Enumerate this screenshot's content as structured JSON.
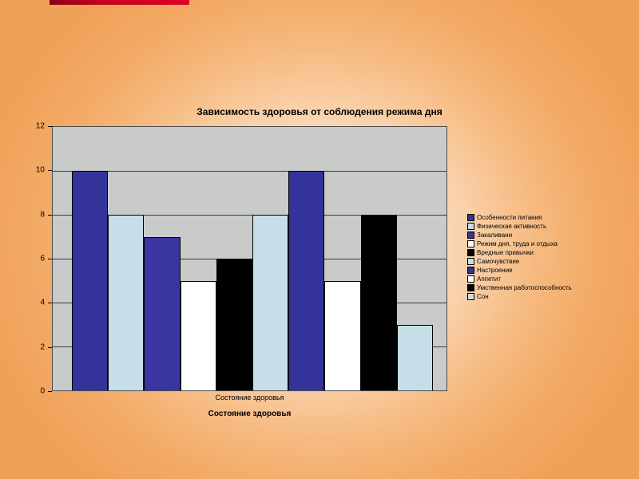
{
  "slide": {
    "accent_color": "#c2001c",
    "background_outer": "#f0a158",
    "background_center": "#fff8f5"
  },
  "chart_data": {
    "type": "bar",
    "title": "Зависимость здоровья от соблюдения режима дня",
    "categories": [
      "Состояние здоровья"
    ],
    "tick_label": "Состояние здоровья",
    "xlabel": "Состояние здоровья",
    "ylabel": "",
    "ylim": [
      0,
      12
    ],
    "yticks": [
      0,
      2,
      4,
      6,
      8,
      10,
      12
    ],
    "grid": true,
    "legend_position": "right",
    "plot_background": "#c9caca",
    "series": [
      {
        "name": "Особенности питания",
        "color": "#333399",
        "values": [
          10
        ]
      },
      {
        "name": "Физическая активность",
        "color": "#c6dee8",
        "values": [
          8
        ]
      },
      {
        "name": "Закаливани",
        "color": "#3a35a0",
        "values": [
          7
        ]
      },
      {
        "name": "Режим дня, труда и отдыха",
        "color": "#ffffff",
        "values": [
          5
        ]
      },
      {
        "name": "Вредные привычки",
        "color": "#000000",
        "values": [
          6
        ]
      },
      {
        "name": "Самочувствие",
        "color": "#c6dee8",
        "values": [
          8
        ]
      },
      {
        "name": "Настроение",
        "color": "#333399",
        "values": [
          10
        ]
      },
      {
        "name": "Аппетит",
        "color": "#ffffff",
        "values": [
          5
        ]
      },
      {
        "name": "Умственная работоспособность",
        "color": "#000000",
        "values": [
          8
        ]
      },
      {
        "name": "Сон",
        "color": "#c6dee8",
        "values": [
          3
        ]
      }
    ]
  }
}
